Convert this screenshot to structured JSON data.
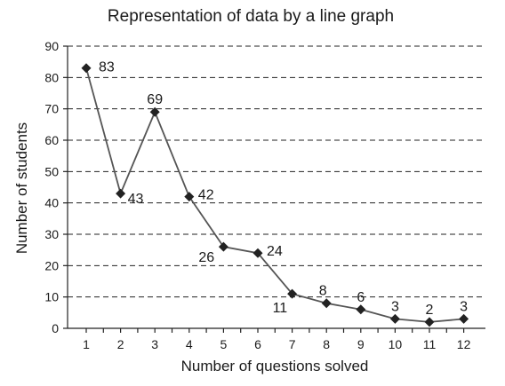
{
  "chart_data": {
    "type": "line",
    "title": "Representation of data by a line graph",
    "xlabel": "Number of questions solved",
    "ylabel": "Number of students",
    "x": [
      1,
      2,
      3,
      4,
      5,
      6,
      7,
      8,
      9,
      10,
      11,
      12
    ],
    "values": [
      83,
      43,
      69,
      42,
      26,
      24,
      11,
      8,
      6,
      3,
      2,
      3
    ],
    "data_labels": [
      "83",
      "43",
      "69",
      "42",
      "26",
      "24",
      "11",
      "8",
      "6",
      "3",
      "2",
      "3"
    ],
    "x_ticks": [
      "1",
      "2",
      "3",
      "4",
      "5",
      "6",
      "7",
      "8",
      "9",
      "10",
      "11",
      "12"
    ],
    "y_ticks": [
      "0",
      "10",
      "20",
      "30",
      "40",
      "50",
      "60",
      "70",
      "80",
      "90"
    ],
    "ylim": [
      0,
      90
    ],
    "grid": "horizontal dashed",
    "marker": "diamond",
    "line_color": "#555555",
    "marker_color": "#222222"
  }
}
